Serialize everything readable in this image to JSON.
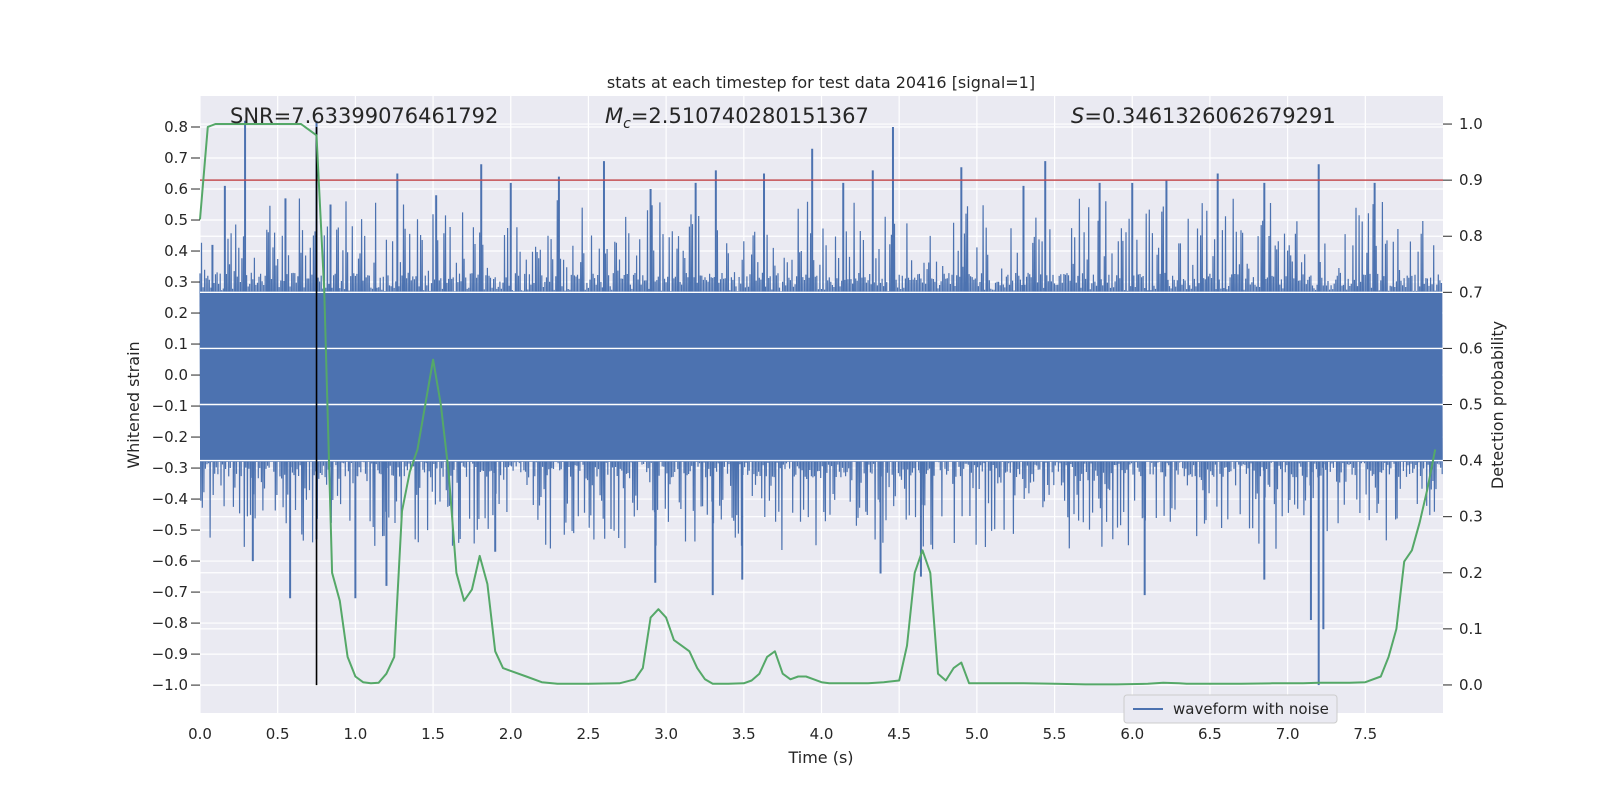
{
  "chart_data": {
    "type": "line",
    "title": "stats at each timestep for test data 20416 [signal=1]",
    "xlabel": "Time (s)",
    "ylabel": "Whitened strain",
    "y2label": "Detection probability",
    "xlim": [
      0.0,
      8.0
    ],
    "ylim": [
      -1.09,
      0.9
    ],
    "y2lim": [
      -0.05,
      1.05
    ],
    "xticks": [
      0.0,
      0.5,
      1.0,
      1.5,
      2.0,
      2.5,
      3.0,
      3.5,
      4.0,
      4.5,
      5.0,
      5.5,
      6.0,
      6.5,
      7.0,
      7.5
    ],
    "xtick_labels": [
      "0.0",
      "0.5",
      "1.0",
      "1.5",
      "2.0",
      "2.5",
      "3.0",
      "3.5",
      "4.0",
      "4.5",
      "5.0",
      "5.5",
      "6.0",
      "6.5",
      "7.0",
      "7.5"
    ],
    "yticks": [
      0.8,
      0.7,
      0.6,
      0.5,
      0.4,
      0.3,
      0.2,
      0.1,
      0.0,
      -0.1,
      -0.2,
      -0.3,
      -0.4,
      -0.5,
      -0.6,
      -0.7,
      -0.8,
      -0.9,
      -1.0
    ],
    "ytick_labels": [
      "0.8",
      "0.7",
      "0.6",
      "0.5",
      "0.4",
      "0.3",
      "0.2",
      "0.1",
      "0.0",
      "−0.1",
      "−0.2",
      "−0.3",
      "−0.4",
      "−0.5",
      "−0.6",
      "−0.7",
      "−0.8",
      "−0.9",
      "−1.0"
    ],
    "y2ticks": [
      1.0,
      0.9,
      0.8,
      0.7,
      0.6,
      0.5,
      0.4,
      0.3,
      0.2,
      0.1,
      0.0
    ],
    "y2tick_labels": [
      "1.0",
      "0.9",
      "0.8",
      "0.7",
      "0.6",
      "0.5",
      "0.4",
      "0.3",
      "0.2",
      "0.1",
      "0.0"
    ],
    "grid": true,
    "legend_position": "lower-right",
    "annotations": {
      "snr": "SNR=7.63399076461792",
      "mc_symbol": "M",
      "mc_sub": "c",
      "mc_value": "=2.510740280151367",
      "s_symbol": "S",
      "s_value": "=0.3461326062679291"
    },
    "threshold": {
      "axis": "y2",
      "value": 0.9,
      "color": "#c44e52"
    },
    "marker_line": {
      "x": 0.75,
      "y_range": [
        -1.0,
        0.8
      ],
      "color": "#000000"
    },
    "series": [
      {
        "name": "waveform with noise",
        "axis": "y",
        "color": "#4c72b0",
        "render": "dense-noise",
        "core_band": [
          -0.28,
          0.27
        ],
        "typical_peak_range": [
          -0.55,
          0.57
        ],
        "spikes": [
          {
            "x": 0.08,
            "y": 0.42
          },
          {
            "x": 0.16,
            "y": 0.61
          },
          {
            "x": 0.29,
            "y": 0.82
          },
          {
            "x": 0.55,
            "y": 0.57
          },
          {
            "x": 0.75,
            "y": 0.82
          },
          {
            "x": 0.84,
            "y": 0.55
          },
          {
            "x": 1.27,
            "y": 0.65
          },
          {
            "x": 1.52,
            "y": 0.58
          },
          {
            "x": 1.81,
            "y": 0.68
          },
          {
            "x": 2.0,
            "y": 0.62
          },
          {
            "x": 2.31,
            "y": 0.64
          },
          {
            "x": 2.6,
            "y": 0.69
          },
          {
            "x": 2.9,
            "y": 0.6
          },
          {
            "x": 3.19,
            "y": 0.62
          },
          {
            "x": 3.32,
            "y": 0.66
          },
          {
            "x": 3.63,
            "y": 0.65
          },
          {
            "x": 3.94,
            "y": 0.73
          },
          {
            "x": 4.14,
            "y": 0.62
          },
          {
            "x": 4.33,
            "y": 0.66
          },
          {
            "x": 4.46,
            "y": 0.8
          },
          {
            "x": 4.9,
            "y": 0.67
          },
          {
            "x": 5.3,
            "y": 0.61
          },
          {
            "x": 5.44,
            "y": 0.69
          },
          {
            "x": 5.79,
            "y": 0.62
          },
          {
            "x": 6.0,
            "y": 0.62
          },
          {
            "x": 6.22,
            "y": 0.63
          },
          {
            "x": 6.55,
            "y": 0.65
          },
          {
            "x": 6.85,
            "y": 0.62
          },
          {
            "x": 7.2,
            "y": 0.68
          },
          {
            "x": 7.56,
            "y": 0.62
          },
          {
            "x": 0.58,
            "y": -0.72
          },
          {
            "x": 0.34,
            "y": -0.6
          },
          {
            "x": 0.75,
            "y": -0.53
          },
          {
            "x": 1.0,
            "y": -0.72
          },
          {
            "x": 1.2,
            "y": -0.68
          },
          {
            "x": 1.9,
            "y": -0.57
          },
          {
            "x": 2.93,
            "y": -0.67
          },
          {
            "x": 3.3,
            "y": -0.71
          },
          {
            "x": 3.49,
            "y": -0.66
          },
          {
            "x": 4.38,
            "y": -0.64
          },
          {
            "x": 4.64,
            "y": -0.65
          },
          {
            "x": 6.08,
            "y": -0.71
          },
          {
            "x": 6.85,
            "y": -0.66
          },
          {
            "x": 7.15,
            "y": -0.79
          },
          {
            "x": 7.2,
            "y": -1.0
          },
          {
            "x": 7.23,
            "y": -0.82
          }
        ]
      },
      {
        "name": "",
        "axis": "y2",
        "color": "#55a868",
        "render": "line",
        "x": [
          0.0,
          0.05,
          0.1,
          0.2,
          0.3,
          0.4,
          0.5,
          0.6,
          0.65,
          0.7,
          0.75,
          0.8,
          0.85,
          0.9,
          0.95,
          1.0,
          1.05,
          1.1,
          1.15,
          1.2,
          1.25,
          1.3,
          1.35,
          1.4,
          1.45,
          1.5,
          1.55,
          1.6,
          1.65,
          1.7,
          1.75,
          1.8,
          1.85,
          1.9,
          1.95,
          2.0,
          2.1,
          2.2,
          2.3,
          2.5,
          2.7,
          2.8,
          2.85,
          2.9,
          2.95,
          3.0,
          3.05,
          3.1,
          3.15,
          3.2,
          3.25,
          3.3,
          3.4,
          3.5,
          3.55,
          3.6,
          3.65,
          3.7,
          3.75,
          3.8,
          3.85,
          3.9,
          3.95,
          4.0,
          4.05,
          4.1,
          4.2,
          4.3,
          4.4,
          4.5,
          4.55,
          4.6,
          4.65,
          4.7,
          4.75,
          4.8,
          4.85,
          4.9,
          4.95,
          5.0,
          5.1,
          5.3,
          5.5,
          5.7,
          5.9,
          6.1,
          6.2,
          6.3,
          6.35,
          6.4,
          6.5,
          6.7,
          6.9,
          7.1,
          7.2,
          7.3,
          7.4,
          7.5,
          7.6,
          7.65,
          7.7,
          7.75,
          7.8,
          7.85,
          7.9,
          7.95
        ],
        "y": [
          0.83,
          0.995,
          1.0,
          1.0,
          1.0,
          1.0,
          1.0,
          1.0,
          1.0,
          0.99,
          0.98,
          0.7,
          0.2,
          0.15,
          0.05,
          0.015,
          0.005,
          0.003,
          0.004,
          0.02,
          0.05,
          0.31,
          0.38,
          0.42,
          0.5,
          0.58,
          0.5,
          0.38,
          0.2,
          0.15,
          0.17,
          0.23,
          0.18,
          0.06,
          0.03,
          0.025,
          0.015,
          0.005,
          0.002,
          0.002,
          0.003,
          0.01,
          0.03,
          0.12,
          0.135,
          0.12,
          0.08,
          0.07,
          0.06,
          0.03,
          0.01,
          0.002,
          0.002,
          0.003,
          0.008,
          0.02,
          0.05,
          0.06,
          0.02,
          0.01,
          0.015,
          0.015,
          0.01,
          0.005,
          0.003,
          0.003,
          0.003,
          0.003,
          0.005,
          0.008,
          0.07,
          0.2,
          0.24,
          0.2,
          0.02,
          0.008,
          0.03,
          0.04,
          0.003,
          0.003,
          0.003,
          0.003,
          0.002,
          0.001,
          0.001,
          0.002,
          0.004,
          0.003,
          0.002,
          0.002,
          0.002,
          0.002,
          0.003,
          0.003,
          0.004,
          0.004,
          0.004,
          0.005,
          0.015,
          0.05,
          0.1,
          0.22,
          0.24,
          0.29,
          0.35,
          0.42
        ]
      }
    ]
  }
}
